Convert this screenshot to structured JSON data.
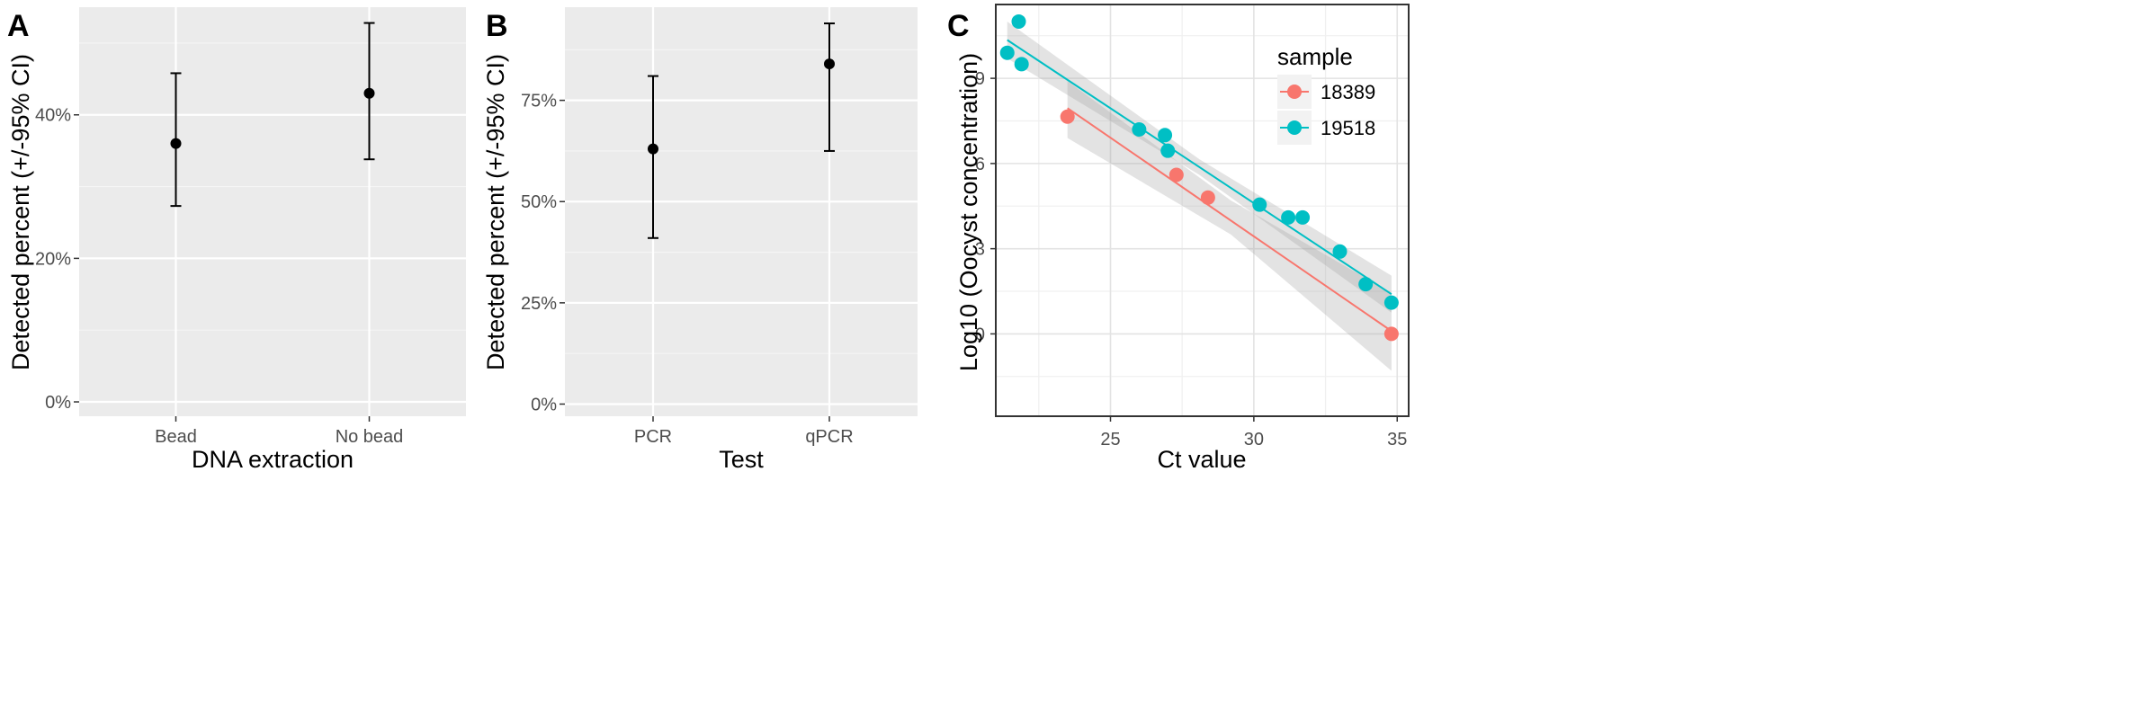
{
  "chart_data": [
    {
      "panel": "A",
      "type": "scatter",
      "xlabel": "DNA extraction",
      "ylabel": "Detected percent (+/-95% CI)",
      "categories": [
        "Bead",
        "No bead"
      ],
      "values": [
        36,
        43
      ],
      "ci_low": [
        27.3,
        33.8
      ],
      "ci_high": [
        45.8,
        52.8
      ],
      "y_ticks": [
        "0%",
        "20%",
        "40%"
      ],
      "y_tick_values": [
        0,
        20,
        40
      ],
      "ylim": [
        -2,
        55
      ],
      "grid": true
    },
    {
      "panel": "B",
      "type": "scatter",
      "xlabel": "Test",
      "ylabel": "Detected percent (+/-95% CI)",
      "categories": [
        "PCR",
        "qPCR"
      ],
      "values": [
        63,
        84
      ],
      "ci_low": [
        41,
        62.5
      ],
      "ci_high": [
        81,
        94
      ],
      "y_ticks": [
        "0%",
        "25%",
        "50%",
        "75%"
      ],
      "y_tick_values": [
        0,
        25,
        50,
        75
      ],
      "ylim": [
        -3,
        98
      ],
      "grid": true
    },
    {
      "panel": "C",
      "type": "scatter",
      "xlabel": "Ct value",
      "ylabel": "Log10 (Oocyst concentration)",
      "x_ticks": [
        "25",
        "30",
        "35"
      ],
      "x_tick_values": [
        25,
        30,
        35
      ],
      "y_ticks": [
        "0",
        "3",
        "6",
        "9"
      ],
      "y_tick_values": [
        0,
        3,
        6,
        9
      ],
      "xlim": [
        21,
        35.4
      ],
      "ylim": [
        -2.9,
        11.6
      ],
      "legend_title": "sample",
      "legend_position": "top-right",
      "grid": true,
      "series": [
        {
          "name": "18389",
          "color": "#F8766D",
          "points": [
            [
              23.5,
              7.65
            ],
            [
              27.3,
              5.6
            ],
            [
              28.4,
              4.8
            ],
            [
              34.8,
              0
            ]
          ],
          "fit_line": [
            [
              23.5,
              7.95
            ],
            [
              34.8,
              0.1
            ]
          ],
          "band_upper": [
            [
              23.5,
              8.9
            ],
            [
              29.2,
              4.7
            ],
            [
              34.8,
              1.45
            ]
          ],
          "band_lower": [
            [
              23.5,
              6.9
            ],
            [
              29.2,
              3.5
            ],
            [
              34.8,
              -1.3
            ]
          ]
        },
        {
          "name": "19518",
          "color": "#00BFC4",
          "points": [
            [
              21.4,
              9.9
            ],
            [
              21.8,
              11.0
            ],
            [
              21.9,
              9.5
            ],
            [
              26.0,
              7.2
            ],
            [
              26.9,
              7.0
            ],
            [
              27.0,
              6.45
            ],
            [
              30.2,
              4.55
            ],
            [
              31.2,
              4.1
            ],
            [
              31.7,
              4.1
            ],
            [
              33.0,
              2.9
            ],
            [
              33.9,
              1.75
            ],
            [
              34.8,
              1.1
            ]
          ],
          "fit_line": [
            [
              21.4,
              10.35
            ],
            [
              34.8,
              1.4
            ]
          ],
          "band_upper": [
            [
              21.4,
              11.0
            ],
            [
              28.1,
              6.15
            ],
            [
              34.8,
              2.05
            ]
          ],
          "band_lower": [
            [
              21.4,
              9.7
            ],
            [
              28.1,
              5.6
            ],
            [
              34.8,
              0.75
            ]
          ]
        }
      ]
    }
  ]
}
